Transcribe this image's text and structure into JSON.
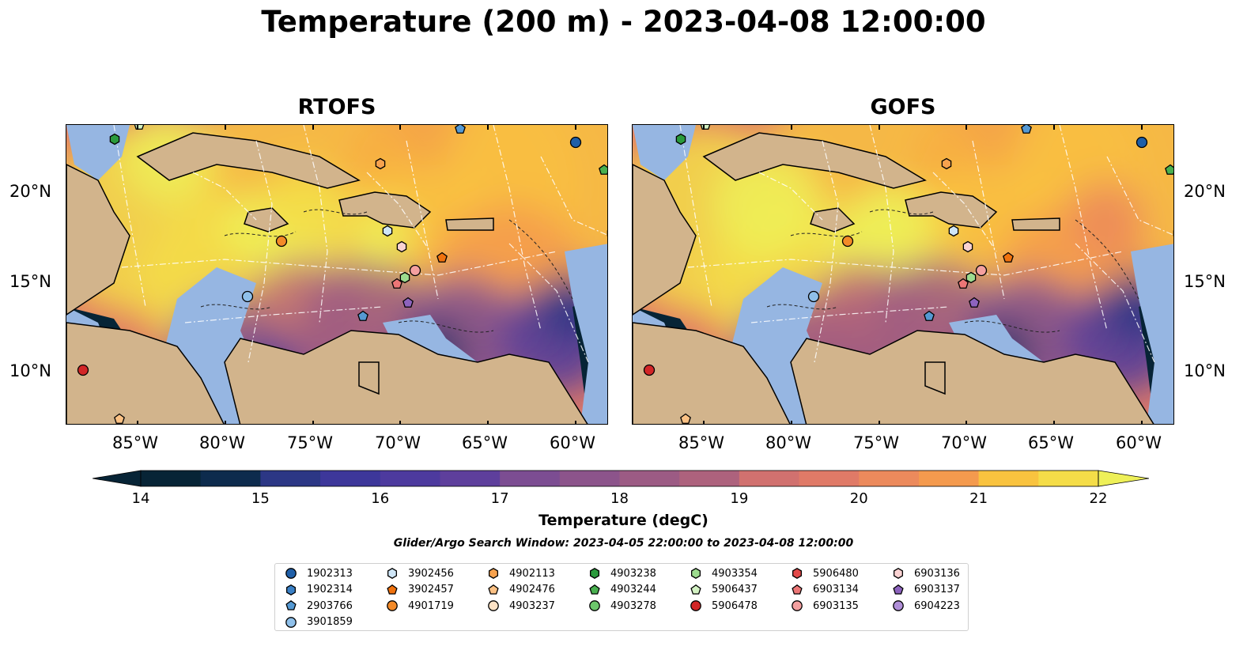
{
  "title": "Temperature (200 m) - 2023-04-08 12:00:00",
  "panels": [
    {
      "title": "RTOFS"
    },
    {
      "title": "GOFS"
    }
  ],
  "lon_labels": [
    "85°W",
    "80°W",
    "75°W",
    "70°W",
    "65°W",
    "60°W"
  ],
  "lat_labels": [
    "20°N",
    "15°N",
    "10°N"
  ],
  "colorbar": {
    "label": "Temperature (degC)",
    "ticks": [
      "14",
      "15",
      "16",
      "17",
      "18",
      "19",
      "20",
      "21",
      "22"
    ],
    "range": [
      14,
      22
    ],
    "step": 0.5,
    "extend": "both",
    "colormap": [
      "#072436",
      "#0d2b4d",
      "#1a3466",
      "#2c3785",
      "#3d379a",
      "#4d3a9e",
      "#5e3f9c",
      "#6d4698",
      "#7c4d92",
      "#8c548b",
      "#9c5b84",
      "#ad627d",
      "#bf6976",
      "#d1716f",
      "#e07a67",
      "#ec8a5c",
      "#f49a4e",
      "#f8ad42",
      "#f9c33f",
      "#f5dd48",
      "#eef058"
    ]
  },
  "search_window": "Glider/Argo Search Window: 2023-04-05 22:00:00 to 2023-04-08 12:00:00",
  "legend": [
    {
      "id": "1902313",
      "marker": "circle",
      "color": "#1f5fa8"
    },
    {
      "id": "1902314",
      "marker": "hexagon",
      "color": "#3a80c6"
    },
    {
      "id": "2903766",
      "marker": "pentagon",
      "color": "#5599d3"
    },
    {
      "id": "3901859",
      "marker": "circle",
      "color": "#8fc0ea"
    },
    {
      "id": "3902456",
      "marker": "hexagon",
      "color": "#cfe6f7"
    },
    {
      "id": "3902457",
      "marker": "pentagon",
      "color": "#f0720e"
    },
    {
      "id": "4901719",
      "marker": "circle",
      "color": "#f38a28"
    },
    {
      "id": "4902113",
      "marker": "hexagon",
      "color": "#f7a24e"
    },
    {
      "id": "4902476",
      "marker": "pentagon",
      "color": "#fbc184"
    },
    {
      "id": "4903237",
      "marker": "circle",
      "color": "#fde2c5"
    },
    {
      "id": "4903238",
      "marker": "hexagon",
      "color": "#2a9a3c"
    },
    {
      "id": "4903244",
      "marker": "pentagon",
      "color": "#49b04f"
    },
    {
      "id": "4903278",
      "marker": "circle",
      "color": "#6cc66b"
    },
    {
      "id": "4903354",
      "marker": "hexagon",
      "color": "#9ddc8f"
    },
    {
      "id": "5906437",
      "marker": "pentagon",
      "color": "#d3f2c3"
    },
    {
      "id": "5906478",
      "marker": "circle",
      "color": "#d22627"
    },
    {
      "id": "5906480",
      "marker": "hexagon",
      "color": "#e34a4a"
    },
    {
      "id": "6903134",
      "marker": "pentagon",
      "color": "#ec7676"
    },
    {
      "id": "6903135",
      "marker": "circle",
      "color": "#f4a0a0"
    },
    {
      "id": "6903136",
      "marker": "hexagon",
      "color": "#fad2d2"
    },
    {
      "id": "6903137",
      "marker": "pentagon",
      "color": "#8d63be"
    },
    {
      "id": "6904223",
      "marker": "circle",
      "color": "#b08fd8"
    }
  ],
  "colors": {
    "land": "#d2b48c",
    "shallow_water": "#96b6e2",
    "coast": "#000000",
    "eez": "#ffffff"
  }
}
